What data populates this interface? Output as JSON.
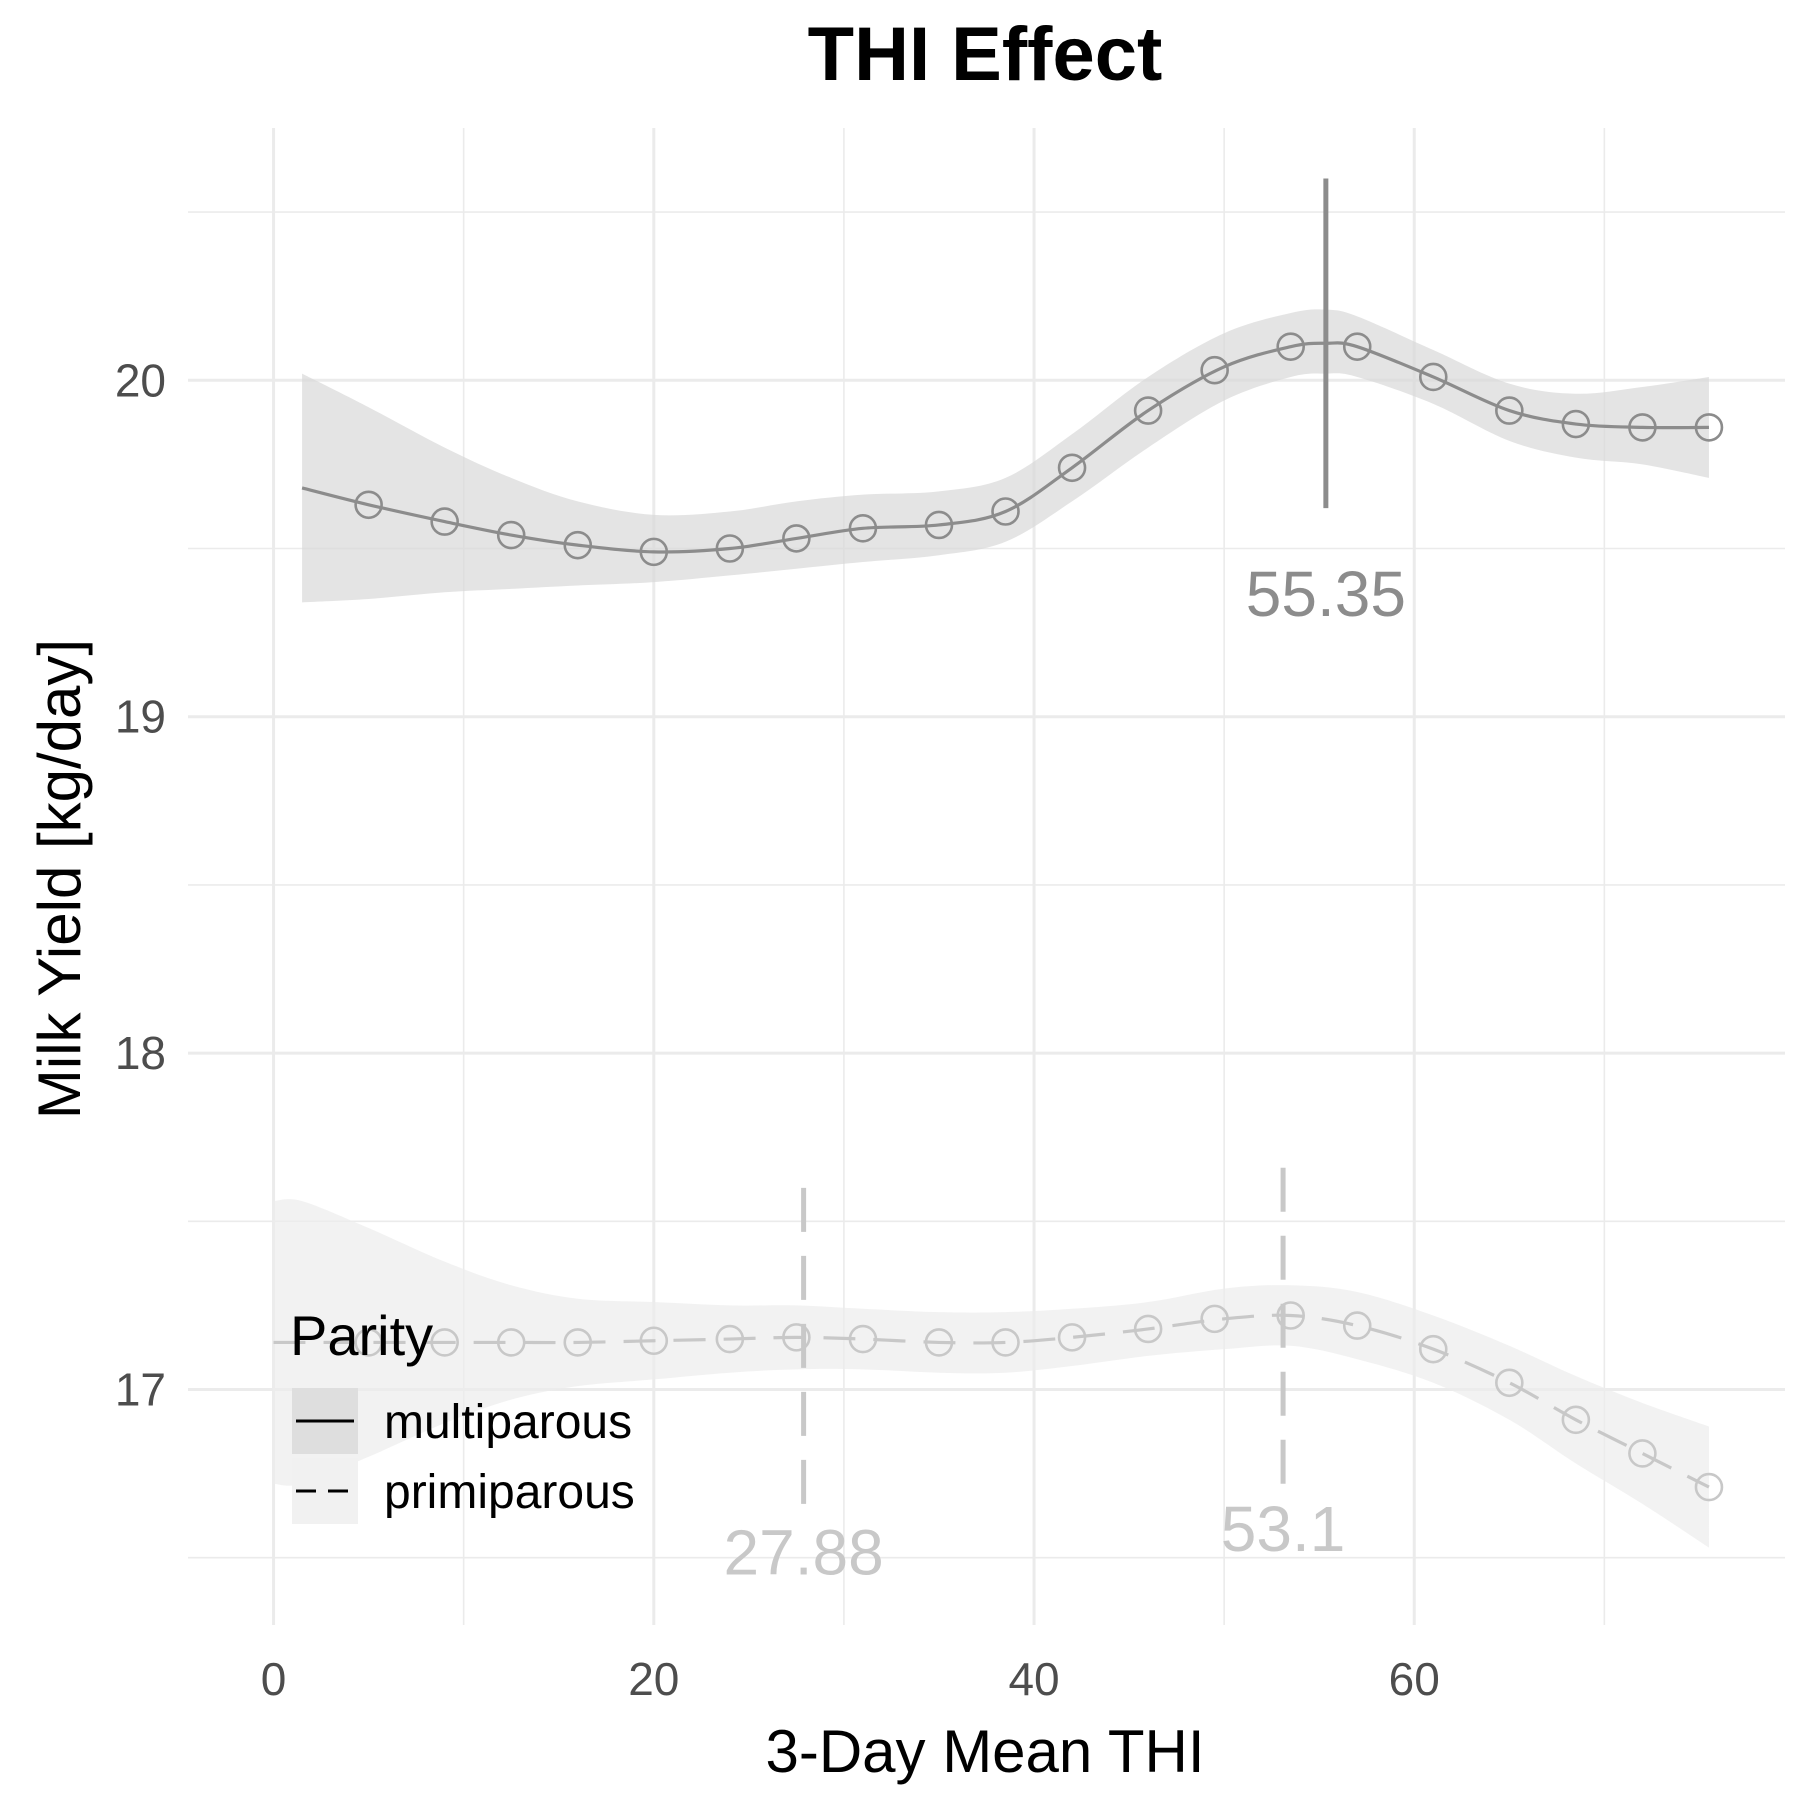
{
  "chart_data": {
    "type": "line",
    "title": "THI Effect",
    "xlabel": "3-Day Mean THI",
    "ylabel": "Milk Yield [kg/day]",
    "xlim": [
      -4.5,
      79.5
    ],
    "ylim": [
      16.3,
      20.75
    ],
    "x_ticks": [
      0,
      20,
      40,
      60
    ],
    "x_tick_labels": [
      "0",
      "20",
      "40",
      "60"
    ],
    "y_ticks": [
      17,
      18,
      19,
      20
    ],
    "y_tick_labels": [
      "17",
      "18",
      "19",
      "20"
    ],
    "grid": true,
    "legend": {
      "title": "Parity",
      "position": "bottom-left",
      "entries": [
        "multiparous",
        "primiparous"
      ]
    },
    "series": [
      {
        "name": "multiparous",
        "line_style": "solid",
        "color": "#8c8c8c",
        "ribbon_color": "#d9d9d9",
        "curve": {
          "x": [
            1.5,
            5,
            9,
            12.5,
            16,
            20,
            24,
            27.5,
            31,
            35,
            38.5,
            42,
            46,
            50,
            53.5,
            55.35,
            57,
            61,
            65,
            68.5,
            72,
            75.5
          ],
          "y": [
            19.68,
            19.63,
            19.58,
            19.54,
            19.51,
            19.49,
            19.5,
            19.53,
            19.56,
            19.57,
            19.61,
            19.74,
            19.91,
            20.04,
            20.1,
            20.11,
            20.1,
            20.01,
            19.91,
            19.87,
            19.86,
            19.86
          ],
          "lower": [
            19.34,
            19.35,
            19.37,
            19.38,
            19.39,
            19.4,
            19.42,
            19.44,
            19.46,
            19.48,
            19.52,
            19.64,
            19.8,
            19.94,
            20.01,
            20.02,
            20.01,
            19.93,
            19.82,
            19.77,
            19.75,
            19.71
          ],
          "upper": [
            20.02,
            19.92,
            19.8,
            19.71,
            19.64,
            19.6,
            19.61,
            19.64,
            19.66,
            19.67,
            19.71,
            19.84,
            20.01,
            20.14,
            20.2,
            20.21,
            20.19,
            20.09,
            19.99,
            19.96,
            19.98,
            20.01
          ]
        },
        "points": {
          "x": [
            5,
            9,
            12.5,
            16,
            20,
            24,
            27.5,
            31,
            35,
            38.5,
            42,
            46,
            49.5,
            53.5,
            57,
            61,
            65,
            68.5,
            72,
            75.5
          ],
          "y": [
            19.63,
            19.58,
            19.54,
            19.51,
            19.49,
            19.5,
            19.53,
            19.56,
            19.57,
            19.61,
            19.74,
            19.91,
            20.03,
            20.1,
            20.1,
            20.01,
            19.91,
            19.87,
            19.86,
            19.86
          ]
        },
        "thresholds": [
          {
            "x": 55.35,
            "label": "55.35",
            "y_from": 19.62,
            "y_to": 20.6,
            "label_y": 19.3
          }
        ]
      },
      {
        "name": "primiparous",
        "line_style": "dashed",
        "color": "#c8c8c8",
        "ribbon_color": "#ececec",
        "curve": {
          "x": [
            0,
            1.5,
            5,
            9,
            12.5,
            16,
            20,
            24,
            27.5,
            31,
            35,
            38.5,
            42,
            46,
            50,
            53.5,
            57,
            61,
            65,
            68.5,
            72,
            75.5
          ],
          "y": [
            17.14,
            17.14,
            17.14,
            17.14,
            17.14,
            17.14,
            17.145,
            17.15,
            17.155,
            17.15,
            17.14,
            17.14,
            17.155,
            17.18,
            17.21,
            17.22,
            17.19,
            17.12,
            17.02,
            16.91,
            16.81,
            16.71
          ],
          "lower": [
            16.72,
            16.72,
            16.8,
            16.9,
            16.97,
            17.01,
            17.03,
            17.05,
            17.06,
            17.06,
            17.05,
            17.05,
            17.07,
            17.1,
            17.12,
            17.13,
            17.09,
            17.02,
            16.91,
            16.78,
            16.66,
            16.53
          ],
          "upper": [
            17.56,
            17.56,
            17.48,
            17.38,
            17.31,
            17.27,
            17.26,
            17.25,
            17.25,
            17.24,
            17.23,
            17.23,
            17.24,
            17.26,
            17.3,
            17.31,
            17.29,
            17.22,
            17.13,
            17.04,
            16.96,
            16.89
          ]
        },
        "points": {
          "x": [
            5,
            9,
            12.5,
            16,
            20,
            24,
            27.5,
            31,
            35,
            38.5,
            42,
            46,
            49.5,
            53.5,
            57,
            61,
            65,
            68.5,
            72,
            75.5
          ],
          "y": [
            17.14,
            17.14,
            17.14,
            17.14,
            17.145,
            17.15,
            17.155,
            17.15,
            17.14,
            17.14,
            17.155,
            17.18,
            17.21,
            17.22,
            17.19,
            17.12,
            17.02,
            16.91,
            16.81,
            16.71
          ]
        },
        "thresholds": [
          {
            "x": 27.88,
            "label": "27.88",
            "y_from": 16.66,
            "y_to": 17.66,
            "label_y": 16.45
          },
          {
            "x": 53.1,
            "label": "53.1",
            "y_from": 16.72,
            "y_to": 17.73,
            "label_y": 16.52
          }
        ]
      }
    ]
  }
}
